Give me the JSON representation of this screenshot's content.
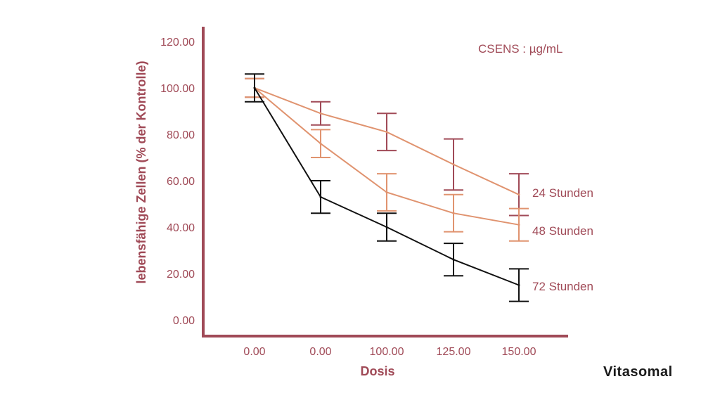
{
  "chart_data": {
    "type": "line",
    "xlabel": "Dosis",
    "ylabel": "lebensfähige Zellen (% der Kontrolle)",
    "categories": [
      "0.00",
      "0.00",
      "100.00",
      "125.00",
      "150.00"
    ],
    "yticks": [
      "0.00",
      "20.00",
      "40.00",
      "60.00",
      "80.00",
      "100.00",
      "120.00"
    ],
    "ylim": [
      0,
      125
    ],
    "grid": false,
    "annotation": "CSENS : µg/mL",
    "series": [
      {
        "name": "24 Stunden",
        "color": "#e0936f",
        "errorbar_color": "#a04a57",
        "values": [
          100,
          89,
          81,
          67,
          54
        ],
        "errors": [
          4,
          5,
          8,
          11,
          9
        ]
      },
      {
        "name": "48 Stunden",
        "color": "#e0936f",
        "errorbar_color": "#e0936f",
        "values": [
          100,
          76,
          55,
          46,
          41
        ],
        "errors": [
          4,
          6,
          8,
          8,
          7
        ]
      },
      {
        "name": "72 Stunden",
        "color": "#111111",
        "errorbar_color": "#111111",
        "values": [
          100,
          53,
          40,
          26,
          15
        ],
        "errors": [
          6,
          7,
          6,
          7,
          7
        ]
      }
    ]
  },
  "brand": "Vitasomal",
  "colors": {
    "axis": "#a04a57",
    "text": "#a04a57",
    "brand": "#1a1a1a"
  }
}
